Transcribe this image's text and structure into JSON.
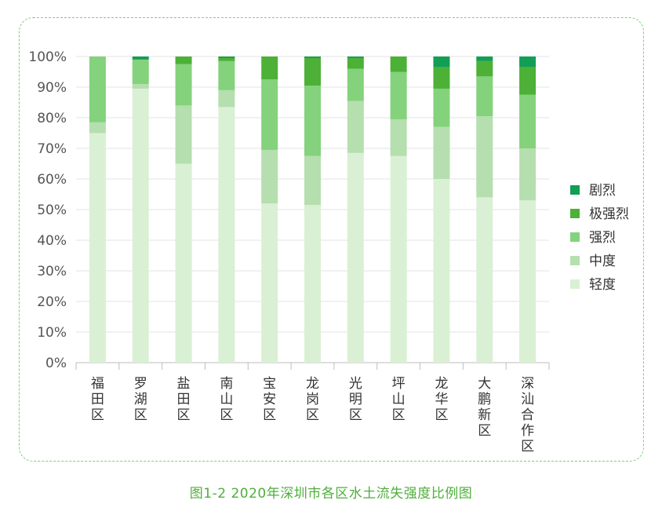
{
  "chart_data": {
    "type": "stacked-bar-100",
    "caption": "图1-2  2020年深圳市各区水土流失强度比例图",
    "ylim": [
      0,
      100
    ],
    "yticks": [
      0,
      10,
      20,
      30,
      40,
      50,
      60,
      70,
      80,
      90,
      100
    ],
    "ytick_labels": [
      "0%",
      "10%",
      "20%",
      "30%",
      "40%",
      "50%",
      "60%",
      "70%",
      "80%",
      "90%",
      "100%"
    ],
    "categories": [
      "福田区",
      "罗湖区",
      "盐田区",
      "南山区",
      "宝安区",
      "龙岗区",
      "光明区",
      "坪山区",
      "龙华区",
      "大鹏新区",
      "深汕合作区"
    ],
    "series": [
      {
        "name": "轻度",
        "color": "#daf0d4",
        "values": [
          75.0,
          89.5,
          65.0,
          83.5,
          52.0,
          51.5,
          68.5,
          67.5,
          60.0,
          54.0,
          53.0
        ]
      },
      {
        "name": "中度",
        "color": "#b5dfae",
        "values": [
          3.5,
          1.5,
          19.0,
          5.5,
          17.5,
          16.0,
          17.0,
          12.0,
          17.0,
          26.5,
          17.0
        ]
      },
      {
        "name": "强烈",
        "color": "#84d27c",
        "values": [
          21.5,
          8.0,
          13.5,
          9.5,
          23.0,
          23.0,
          10.5,
          15.5,
          12.5,
          13.0,
          17.5
        ]
      },
      {
        "name": "极强烈",
        "color": "#4cb136",
        "values": [
          0.0,
          0.0,
          2.5,
          1.0,
          7.5,
          9.0,
          3.5,
          5.0,
          7.0,
          5.0,
          9.0
        ]
      },
      {
        "name": "剧烈",
        "color": "#119e55",
        "values": [
          0.0,
          1.0,
          0.0,
          0.5,
          0.0,
          0.5,
          0.5,
          0.0,
          3.5,
          1.5,
          3.5
        ]
      }
    ],
    "legend": {
      "placement": "right",
      "order": [
        "剧烈",
        "极强烈",
        "强烈",
        "中度",
        "轻度"
      ]
    },
    "grid": true
  }
}
